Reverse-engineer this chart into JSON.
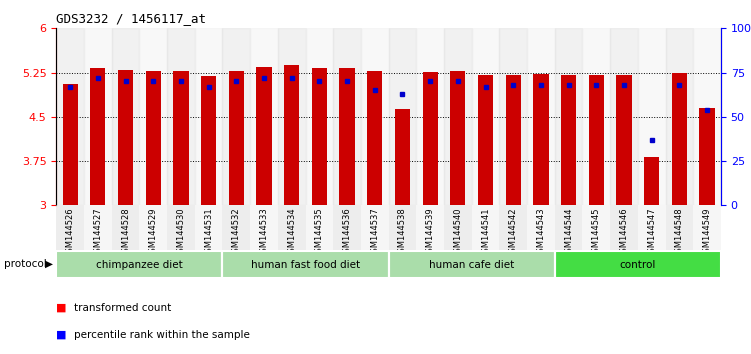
{
  "title": "GDS3232 / 1456117_at",
  "samples": [
    "GSM144526",
    "GSM144527",
    "GSM144528",
    "GSM144529",
    "GSM144530",
    "GSM144531",
    "GSM144532",
    "GSM144533",
    "GSM144534",
    "GSM144535",
    "GSM144536",
    "GSM144537",
    "GSM144538",
    "GSM144539",
    "GSM144540",
    "GSM144541",
    "GSM144542",
    "GSM144543",
    "GSM144544",
    "GSM144545",
    "GSM144546",
    "GSM144547",
    "GSM144548",
    "GSM144549"
  ],
  "red_values": [
    5.05,
    5.32,
    5.3,
    5.28,
    5.28,
    5.2,
    5.28,
    5.35,
    5.37,
    5.32,
    5.33,
    5.27,
    4.64,
    5.26,
    5.28,
    5.21,
    5.21,
    5.22,
    5.21,
    5.21,
    5.21,
    3.82,
    5.24,
    4.65
  ],
  "blue_values": [
    67,
    72,
    70,
    70,
    70,
    67,
    70,
    72,
    72,
    70,
    70,
    65,
    63,
    70,
    70,
    67,
    68,
    68,
    68,
    68,
    68,
    37,
    68,
    54
  ],
  "groups": [
    {
      "label": "chimpanzee diet",
      "start": 0,
      "end": 5,
      "color": "#aaddaa"
    },
    {
      "label": "human fast food diet",
      "start": 6,
      "end": 11,
      "color": "#aaddaa"
    },
    {
      "label": "human cafe diet",
      "start": 12,
      "end": 17,
      "color": "#aaddaa"
    },
    {
      "label": "control",
      "start": 18,
      "end": 23,
      "color": "#44dd44"
    }
  ],
  "bar_color": "#cc0000",
  "blue_color": "#0000cc",
  "ylim_left": [
    3,
    6
  ],
  "ylim_right": [
    0,
    100
  ],
  "yticks_left": [
    3,
    3.75,
    4.5,
    5.25,
    6
  ],
  "yticks_right": [
    0,
    25,
    50,
    75,
    100
  ],
  "background_color": "#ffffff",
  "bar_width": 0.55,
  "tick_bg_colors": [
    "#dddddd",
    "#eeeeee"
  ]
}
